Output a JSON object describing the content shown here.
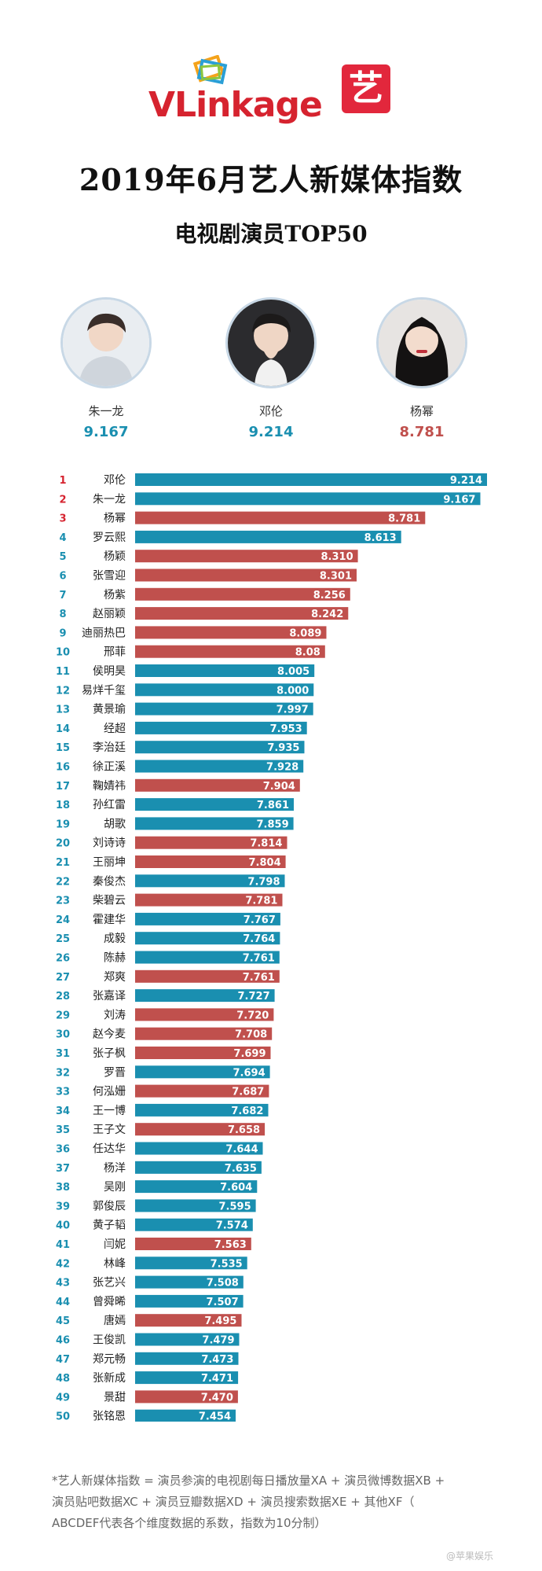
{
  "header": {
    "logo_text": "VLinkage",
    "app_icon_text": "艺",
    "title": "2019年6月艺人新媒体指数",
    "subtitle": "电视剧演员TOP50"
  },
  "podium": [
    {
      "name": "朱一龙",
      "score": "9.167",
      "color": "#1a8fb0"
    },
    {
      "name": "邓伦",
      "score": "9.214",
      "color": "#1a8fb0"
    },
    {
      "name": "杨幂",
      "score": "8.781",
      "color": "#c0504d"
    }
  ],
  "colors": {
    "male": "#1a8fb0",
    "female": "#c0504d",
    "rank_top": "#d6232f",
    "rank": "#1a8fb0"
  },
  "chart_data": {
    "type": "bar",
    "orientation": "horizontal",
    "title": "电视剧演员TOP50",
    "ranks": [
      1,
      2,
      3,
      4,
      5,
      6,
      7,
      8,
      9,
      10,
      11,
      12,
      13,
      14,
      15,
      16,
      17,
      18,
      19,
      20,
      21,
      22,
      23,
      24,
      25,
      26,
      27,
      28,
      29,
      30,
      31,
      32,
      33,
      34,
      35,
      36,
      37,
      38,
      39,
      40,
      41,
      42,
      43,
      44,
      45,
      46,
      47,
      48,
      49,
      50
    ],
    "categories": [
      "邓伦",
      "朱一龙",
      "杨幂",
      "罗云熙",
      "杨颖",
      "张雪迎",
      "杨紫",
      "赵丽颖",
      "迪丽热巴",
      "邢菲",
      "侯明昊",
      "易烊千玺",
      "黄景瑜",
      "经超",
      "李治廷",
      "徐正溪",
      "鞠婧祎",
      "孙红雷",
      "胡歌",
      "刘诗诗",
      "王丽坤",
      "秦俊杰",
      "柴碧云",
      "霍建华",
      "成毅",
      "陈赫",
      "郑爽",
      "张嘉译",
      "刘涛",
      "赵今麦",
      "张子枫",
      "罗晋",
      "何泓姗",
      "王一博",
      "王子文",
      "任达华",
      "杨洋",
      "吴刚",
      "郭俊辰",
      "黄子韬",
      "闫妮",
      "林峰",
      "张艺兴",
      "曾舜晞",
      "唐嫣",
      "王俊凯",
      "郑元畅",
      "张新成",
      "景甜",
      "张铭恩"
    ],
    "labels": [
      "9.214",
      "9.167",
      "8.781",
      "8.613",
      "8.310",
      "8.301",
      "8.256",
      "8.242",
      "8.089",
      "8.08",
      "8.005",
      "8.000",
      "7.997",
      "7.953",
      "7.935",
      "7.928",
      "7.904",
      "7.861",
      "7.859",
      "7.814",
      "7.804",
      "7.798",
      "7.781",
      "7.767",
      "7.764",
      "7.761",
      "7.761",
      "7.727",
      "7.720",
      "7.708",
      "7.699",
      "7.694",
      "7.687",
      "7.682",
      "7.658",
      "7.644",
      "7.635",
      "7.604",
      "7.595",
      "7.574",
      "7.563",
      "7.535",
      "7.508",
      "7.507",
      "7.495",
      "7.479",
      "7.473",
      "7.471",
      "7.470",
      "7.454"
    ],
    "values": [
      9.214,
      9.167,
      8.781,
      8.613,
      8.31,
      8.301,
      8.256,
      8.242,
      8.089,
      8.08,
      8.005,
      8.0,
      7.997,
      7.953,
      7.935,
      7.928,
      7.904,
      7.861,
      7.859,
      7.814,
      7.804,
      7.798,
      7.781,
      7.767,
      7.764,
      7.761,
      7.761,
      7.727,
      7.72,
      7.708,
      7.699,
      7.694,
      7.687,
      7.682,
      7.658,
      7.644,
      7.635,
      7.604,
      7.595,
      7.574,
      7.563,
      7.535,
      7.508,
      7.507,
      7.495,
      7.479,
      7.473,
      7.471,
      7.47,
      7.454
    ],
    "gender": [
      "m",
      "m",
      "f",
      "m",
      "f",
      "f",
      "f",
      "f",
      "f",
      "f",
      "m",
      "m",
      "m",
      "m",
      "m",
      "m",
      "f",
      "m",
      "m",
      "f",
      "f",
      "m",
      "f",
      "m",
      "m",
      "m",
      "f",
      "m",
      "f",
      "f",
      "f",
      "m",
      "f",
      "m",
      "f",
      "m",
      "m",
      "m",
      "m",
      "m",
      "f",
      "m",
      "m",
      "m",
      "f",
      "m",
      "m",
      "m",
      "f",
      "m"
    ],
    "legend": false,
    "grid": false
  },
  "footer": {
    "line1": "*艺人新媒体指数 = 演员参演的电视剧每日播放量XA + 演员微博数据XB +",
    "line2": "演员贴吧数据XC + 演员豆瓣数据XD + 演员搜索数据XE + 其他XF（",
    "line3": "ABCDEF代表各个维度数据的系数，指数为10分制）"
  },
  "watermark": "@苹果娱乐"
}
